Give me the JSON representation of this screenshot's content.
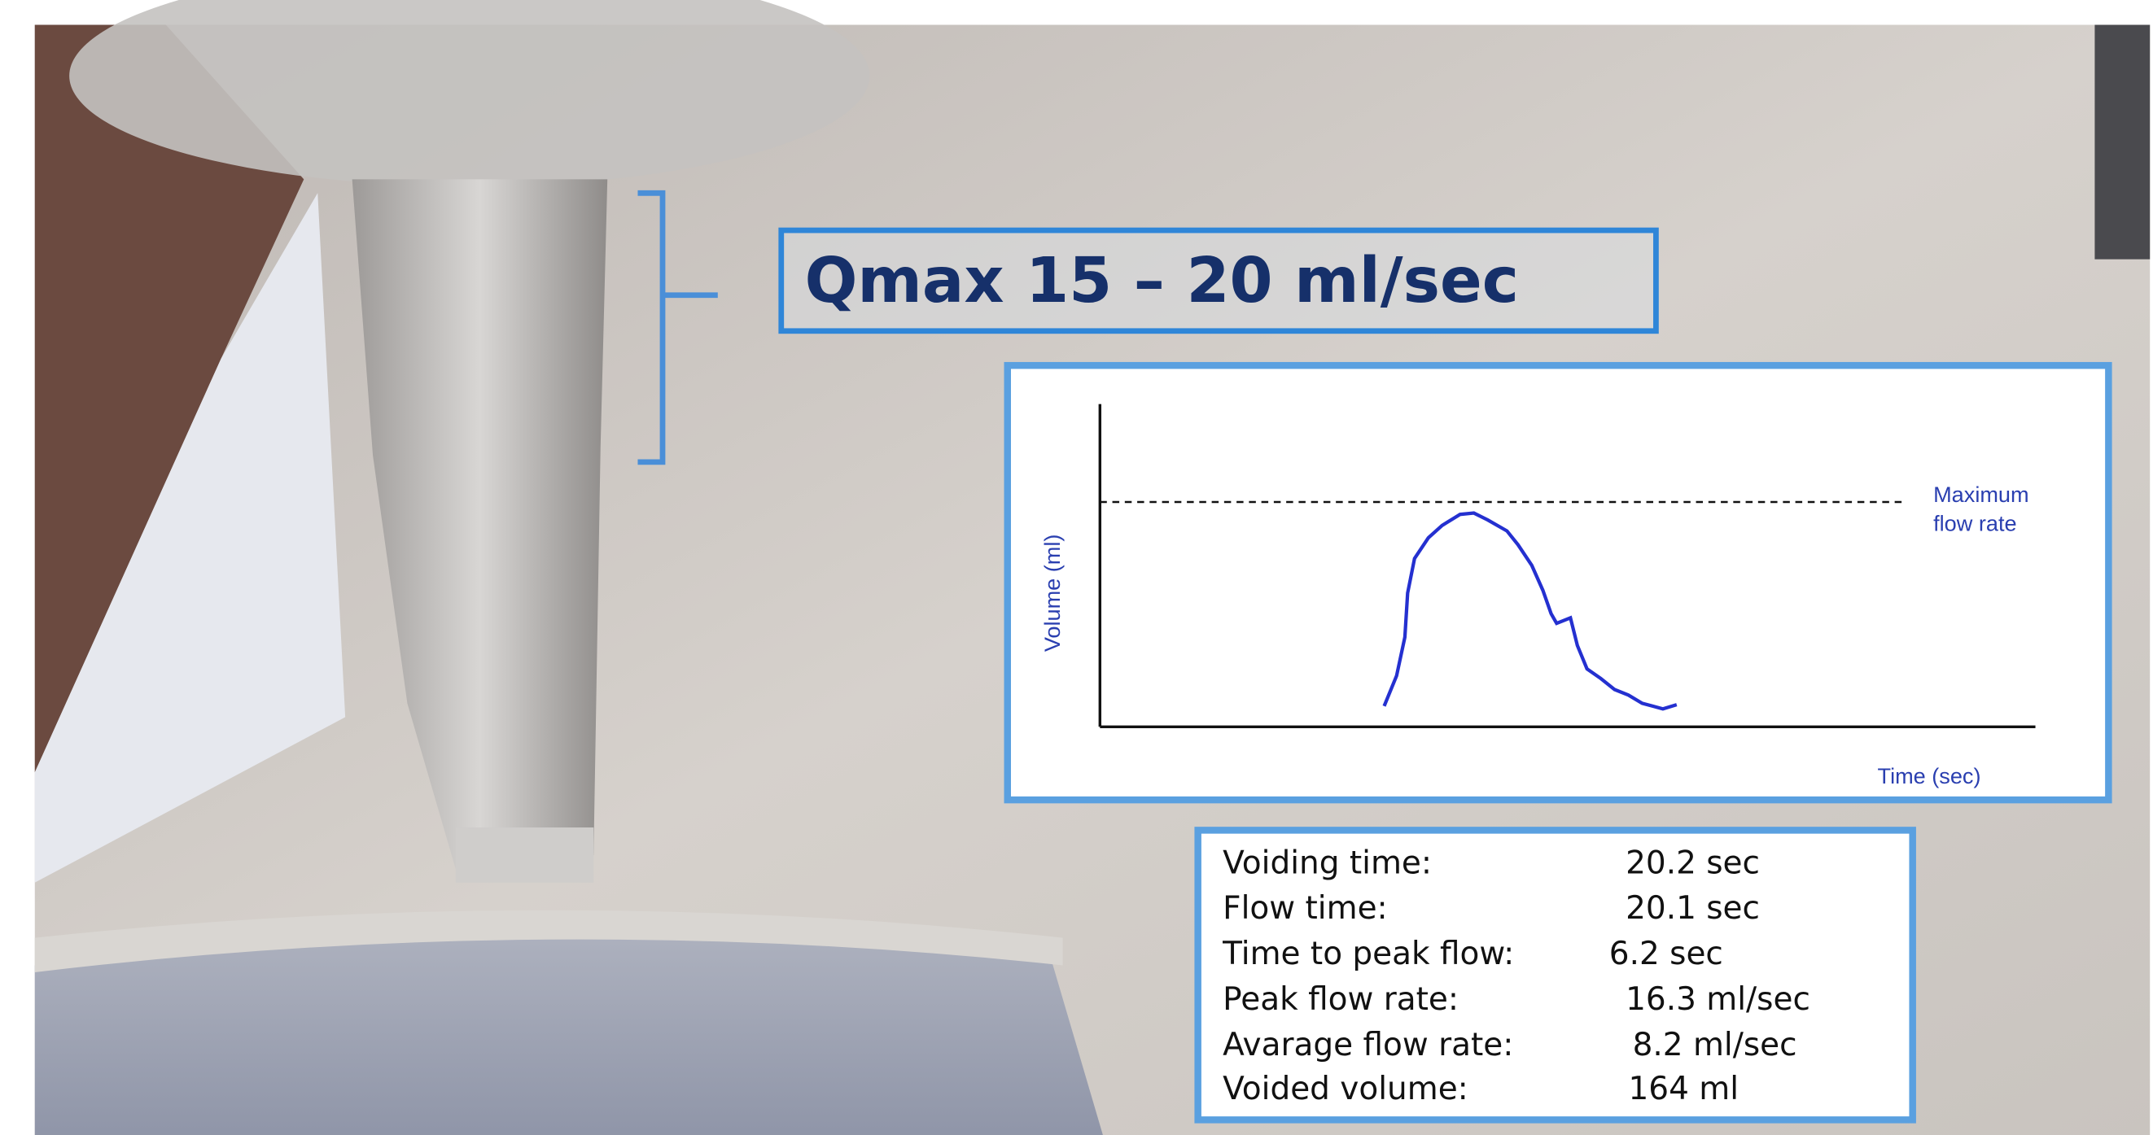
{
  "header": {
    "title": "Qmax 15 – 20 ml/sec"
  },
  "graph": {
    "y_label": "Volume (ml)",
    "x_label": "Time (sec)",
    "annotation_lines": [
      "Maximum",
      "flow rate"
    ]
  },
  "table": {
    "rows": [
      [
        "Voiding time:",
        "20.2 sec"
      ],
      [
        "Flow time:",
        "20.1 sec"
      ],
      [
        "Time to peak flow:",
        "6.2 sec"
      ],
      [
        "Peak flow rate:",
        "16.3 ml/sec"
      ],
      [
        "Avarage flow rate:",
        "8.2 ml/sec"
      ],
      [
        "Voided volume:",
        "164 ml"
      ]
    ]
  }
}
